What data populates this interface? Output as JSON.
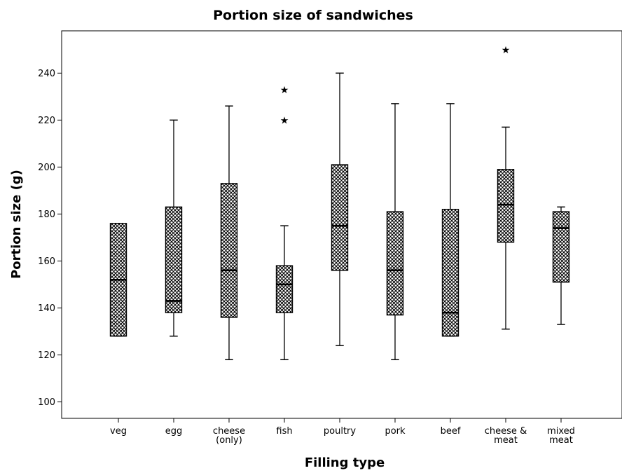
{
  "chart_data": {
    "type": "boxplot",
    "title": "Portion size of sandwiches",
    "xlabel": "Filling type",
    "ylabel": "Portion size (g)",
    "ylim": [
      93,
      258
    ],
    "yticks": [
      100,
      120,
      140,
      160,
      180,
      200,
      220,
      240
    ],
    "grid": false,
    "box_fill": "crosshatch",
    "categories": [
      {
        "label": [
          "veg"
        ],
        "whisker_low": 128,
        "q1": 128,
        "median": 152,
        "q3": 176,
        "whisker_high": 176,
        "outliers": []
      },
      {
        "label": [
          "egg"
        ],
        "whisker_low": 128,
        "q1": 138,
        "median": 143,
        "q3": 183,
        "whisker_high": 220,
        "outliers": []
      },
      {
        "label": [
          "cheese",
          "(only)"
        ],
        "whisker_low": 118,
        "q1": 136,
        "median": 156,
        "q3": 193,
        "whisker_high": 226,
        "outliers": []
      },
      {
        "label": [
          "fish"
        ],
        "whisker_low": 118,
        "q1": 138,
        "median": 150,
        "q3": 158,
        "whisker_high": 175,
        "outliers": [
          220,
          233
        ]
      },
      {
        "label": [
          "poultry"
        ],
        "whisker_low": 124,
        "q1": 156,
        "median": 175,
        "q3": 201,
        "whisker_high": 240,
        "outliers": []
      },
      {
        "label": [
          "pork"
        ],
        "whisker_low": 118,
        "q1": 137,
        "median": 156,
        "q3": 181,
        "whisker_high": 227,
        "outliers": []
      },
      {
        "label": [
          "beef"
        ],
        "whisker_low": 128,
        "q1": 128,
        "median": 138,
        "q3": 182,
        "whisker_high": 227,
        "outliers": []
      },
      {
        "label": [
          "cheese &",
          "meat"
        ],
        "whisker_low": 131,
        "q1": 168,
        "median": 184,
        "q3": 199,
        "whisker_high": 217,
        "outliers": [
          250
        ]
      },
      {
        "label": [
          "mixed",
          "meat"
        ],
        "whisker_low": 133,
        "q1": 151,
        "median": 174,
        "q3": 181,
        "whisker_high": 183,
        "outliers": []
      }
    ]
  }
}
